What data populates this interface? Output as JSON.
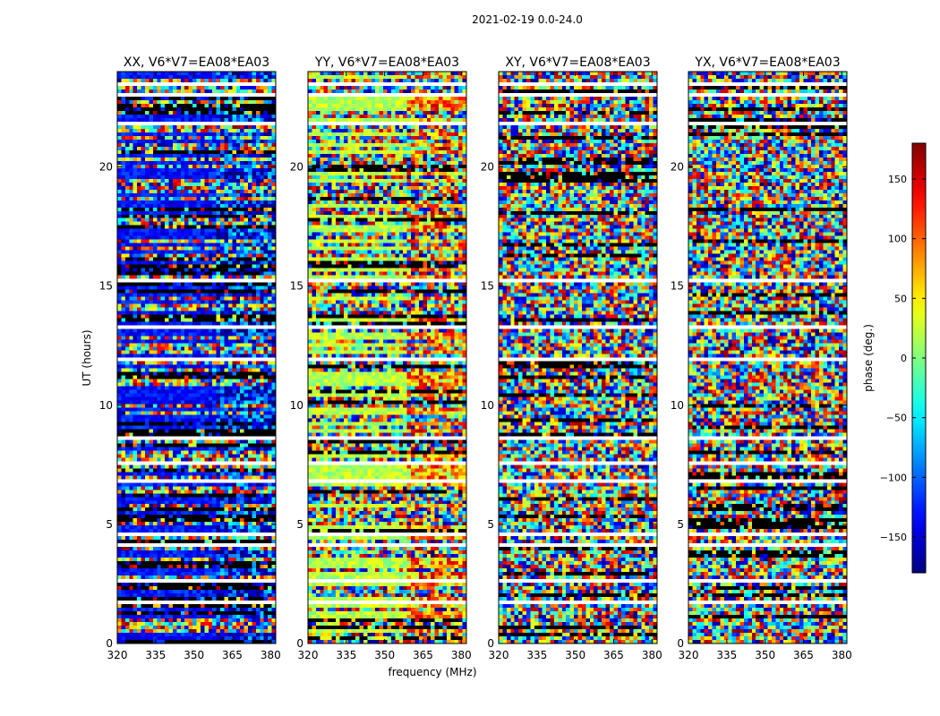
{
  "figure_title": "2021-02-19 0.0-24.0",
  "chart_data": {
    "type": "heatmap",
    "title": "2021-02-19 0.0-24.0",
    "xlabel": "frequency (MHz)",
    "ylabel": "UT (hours)",
    "xlim": [
      320,
      382
    ],
    "ylim": [
      0,
      24
    ],
    "x_ticks": [
      320,
      335,
      350,
      365,
      380
    ],
    "y_ticks": [
      0,
      5,
      10,
      15,
      20
    ],
    "panels": [
      {
        "title": "XX, V6*V7=EA08*EA03",
        "polarization": "XX",
        "baseline_phase_deg": -130
      },
      {
        "title": "YY, V6*V7=EA08*EA03",
        "polarization": "YY",
        "baseline_phase_deg": 20
      },
      {
        "title": "XY, V6*V7=EA08*EA03",
        "polarization": "XY",
        "baseline_phase_deg": null
      },
      {
        "title": "YX, V6*V7=EA08*EA03",
        "polarization": "YX",
        "baseline_phase_deg": null
      }
    ],
    "colorbar": {
      "label": "phase (deg.)",
      "range": [
        -180,
        180
      ],
      "ticks": [
        -150,
        -100,
        -50,
        0,
        50,
        100,
        150
      ],
      "colormap": "jet"
    },
    "flagged_ut_hours": [
      0.6,
      1.5,
      1.7,
      2.6,
      3.6,
      4.1,
      4.6,
      6.8,
      7.2,
      7.6,
      8.6,
      9.9,
      10.2,
      11.9,
      12.3,
      12.6,
      13.3,
      14.1,
      15.2,
      15.6,
      17.7,
      18.0,
      19.8,
      20.7,
      21.8,
      22.5,
      23.0,
      23.5
    ]
  }
}
